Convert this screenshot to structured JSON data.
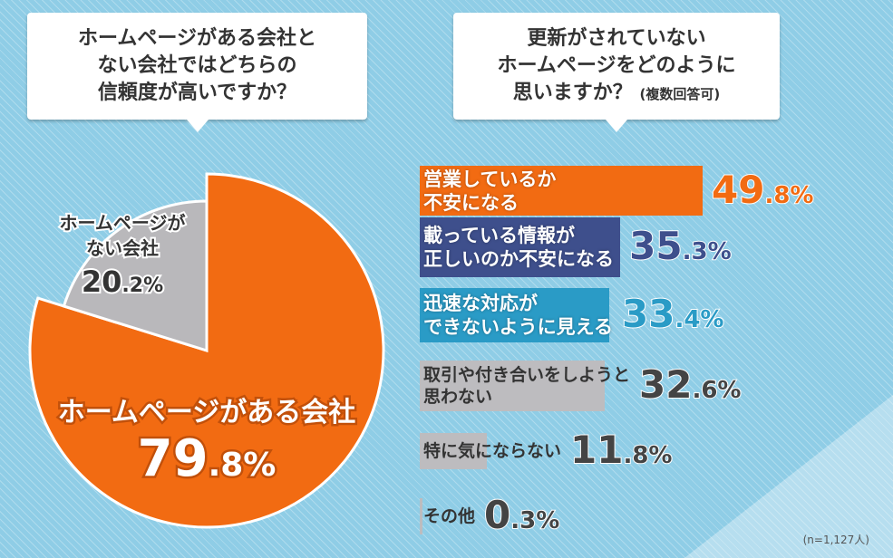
{
  "questions": {
    "left_lines": [
      "ホームページがある会社と",
      "ない会社ではどちらの",
      "信頼度が高いですか？"
    ],
    "right_lines": [
      "更新がされていない",
      "ホームページをどのように",
      "思いますか？"
    ],
    "right_suffix": "(複数回答可)"
  },
  "chart_data": [
    {
      "type": "pie",
      "slices": [
        {
          "label": "ホームページがある会社",
          "value": 79.8,
          "int": "79",
          "dec": ".8%",
          "color": "#f26b12"
        },
        {
          "label": "ホームページがない会社",
          "line1": "ホームページが",
          "line2": "ない会社",
          "value": 20.2,
          "int": "20",
          "dec": ".2%",
          "color": "#b9b8bb"
        }
      ]
    },
    {
      "type": "bar",
      "xlim": [
        0,
        49.8
      ],
      "bars": [
        {
          "label1": "営業しているか",
          "label2": "不安になる",
          "value": 49.8,
          "int": "49",
          "dec": ".8%",
          "color": "#f26b12",
          "pct_color": "#f26b12"
        },
        {
          "label1": "載っている情報が",
          "label2": "正しいのか不安になる",
          "value": 35.3,
          "int": "35",
          "dec": ".3%",
          "color": "#3e4f8c",
          "pct_color": "#3e4f8c"
        },
        {
          "label1": "迅速な対応が",
          "label2": "できないように見える",
          "value": 33.4,
          "int": "33",
          "dec": ".4%",
          "color": "#2a9bc6",
          "pct_color": "#2a9bc6"
        },
        {
          "label1": "取引や付き合いをしようと",
          "label2": "思わない",
          "value": 32.6,
          "int": "32",
          "dec": ".6%",
          "color": "#bdbcbf",
          "pct_color": "#444444"
        },
        {
          "label1": "特に気にならない",
          "label2": "",
          "value": 11.8,
          "int": "11",
          "dec": ".8%",
          "color": "#bdbcbf",
          "pct_color": "#444444"
        },
        {
          "label1": "その他",
          "label2": "",
          "value": 0.3,
          "int": "0",
          "dec": ".3%",
          "color": "#bdbcbf",
          "pct_color": "#444444"
        }
      ]
    }
  ],
  "note": "(n=1,127人)"
}
